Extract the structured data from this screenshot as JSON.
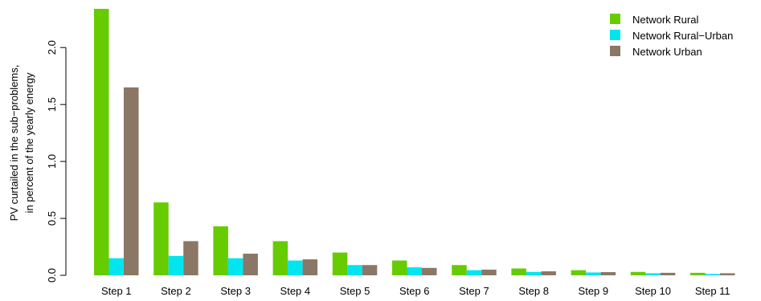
{
  "chart_data": {
    "type": "bar",
    "categories": [
      "Step 1",
      "Step 2",
      "Step 3",
      "Step 4",
      "Step 5",
      "Step 6",
      "Step 7",
      "Step 8",
      "Step 9",
      "Step 10",
      "Step 11"
    ],
    "series": [
      {
        "name": "Network Rural",
        "color": "#66cc00",
        "values": [
          2.34,
          0.64,
          0.43,
          0.3,
          0.2,
          0.13,
          0.09,
          0.06,
          0.045,
          0.03,
          0.022
        ]
      },
      {
        "name": "Network Rural−Urban",
        "color": "#00e5ee",
        "values": [
          0.15,
          0.17,
          0.15,
          0.13,
          0.09,
          0.07,
          0.045,
          0.03,
          0.025,
          0.018,
          0.012
        ]
      },
      {
        "name": "Network Urban",
        "color": "#8b7765",
        "values": [
          1.65,
          0.3,
          0.19,
          0.14,
          0.09,
          0.065,
          0.05,
          0.035,
          0.028,
          0.022,
          0.018
        ]
      }
    ],
    "ylabel_line1": "PV curtailed in the sub−problems,",
    "ylabel_line2": "in percent of the yearly energy",
    "yticks": [
      "0.0",
      "0.5",
      "1.0",
      "1.5",
      "2.0"
    ],
    "ytick_values": [
      0,
      0.5,
      1.0,
      1.5,
      2.0
    ],
    "ylim": [
      0,
      2.34
    ],
    "legend_position": "top-right",
    "grid": false
  }
}
